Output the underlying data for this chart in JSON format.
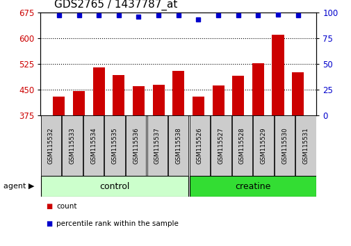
{
  "title": "GDS2765 / 1437787_at",
  "samples": [
    "GSM115532",
    "GSM115533",
    "GSM115534",
    "GSM115535",
    "GSM115536",
    "GSM115537",
    "GSM115538",
    "GSM115526",
    "GSM115527",
    "GSM115528",
    "GSM115529",
    "GSM115530",
    "GSM115531"
  ],
  "counts": [
    430,
    447,
    515,
    493,
    460,
    465,
    505,
    430,
    463,
    490,
    527,
    610,
    500
  ],
  "percentile_ranks": [
    97,
    97,
    97,
    97,
    96,
    97,
    97,
    93,
    97,
    97,
    97,
    98,
    97
  ],
  "ylim_left": [
    375,
    675
  ],
  "ylim_right": [
    0,
    100
  ],
  "yticks_left": [
    375,
    450,
    525,
    600,
    675
  ],
  "yticks_right": [
    0,
    25,
    50,
    75,
    100
  ],
  "bar_color": "#cc0000",
  "dot_color": "#0000cc",
  "n_control": 7,
  "n_creatine": 6,
  "control_label": "control",
  "creatine_label": "creatine",
  "agent_label": "agent",
  "legend_count_label": "count",
  "legend_pct_label": "percentile rank within the sample",
  "control_color": "#ccffcc",
  "creatine_color": "#33dd33",
  "tick_label_bg": "#cccccc",
  "background_color": "#ffffff",
  "title_fontsize": 11,
  "axis_fontsize": 8.5,
  "bar_width": 0.6
}
